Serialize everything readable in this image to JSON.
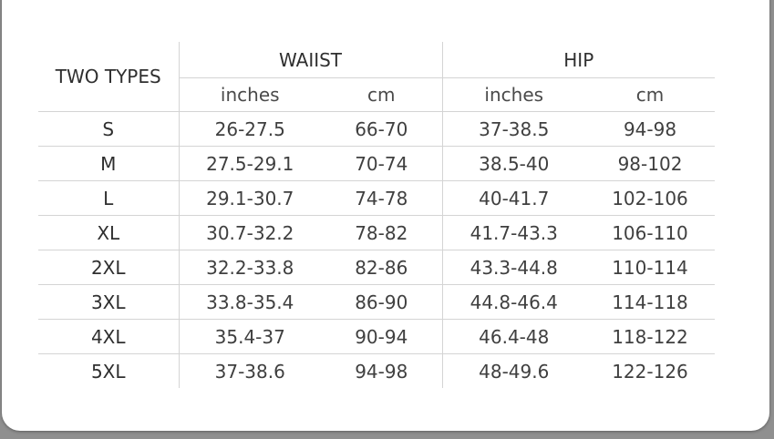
{
  "table": {
    "corner_label": "TWO TYPES",
    "groups": [
      "WAIIST",
      "HIP"
    ],
    "units": [
      "inches",
      "cm",
      "inches",
      "cm"
    ],
    "rows": [
      {
        "size": "S",
        "waist_in": "26-27.5",
        "waist_cm": "66-70",
        "hip_in": "37-38.5",
        "hip_cm": "94-98"
      },
      {
        "size": "M",
        "waist_in": "27.5-29.1",
        "waist_cm": "70-74",
        "hip_in": "38.5-40",
        "hip_cm": "98-102"
      },
      {
        "size": "L",
        "waist_in": "29.1-30.7",
        "waist_cm": "74-78",
        "hip_in": "40-41.7",
        "hip_cm": "102-106"
      },
      {
        "size": "XL",
        "waist_in": "30.7-32.2",
        "waist_cm": "78-82",
        "hip_in": "41.7-43.3",
        "hip_cm": "106-110"
      },
      {
        "size": "2XL",
        "waist_in": "32.2-33.8",
        "waist_cm": "82-86",
        "hip_in": "43.3-44.8",
        "hip_cm": "110-114"
      },
      {
        "size": "3XL",
        "waist_in": "33.8-35.4",
        "waist_cm": "86-90",
        "hip_in": "44.8-46.4",
        "hip_cm": "114-118"
      },
      {
        "size": "4XL",
        "waist_in": "35.4-37",
        "waist_cm": "90-94",
        "hip_in": "46.4-48",
        "hip_cm": "118-122"
      },
      {
        "size": "5XL",
        "waist_in": "37-38.6",
        "waist_cm": "94-98",
        "hip_in": "48-49.6",
        "hip_cm": "122-126"
      }
    ]
  },
  "colors": {
    "text": "#3a3a3a",
    "grid_lines": "#d4d4d4",
    "card_background": "#ffffff"
  }
}
